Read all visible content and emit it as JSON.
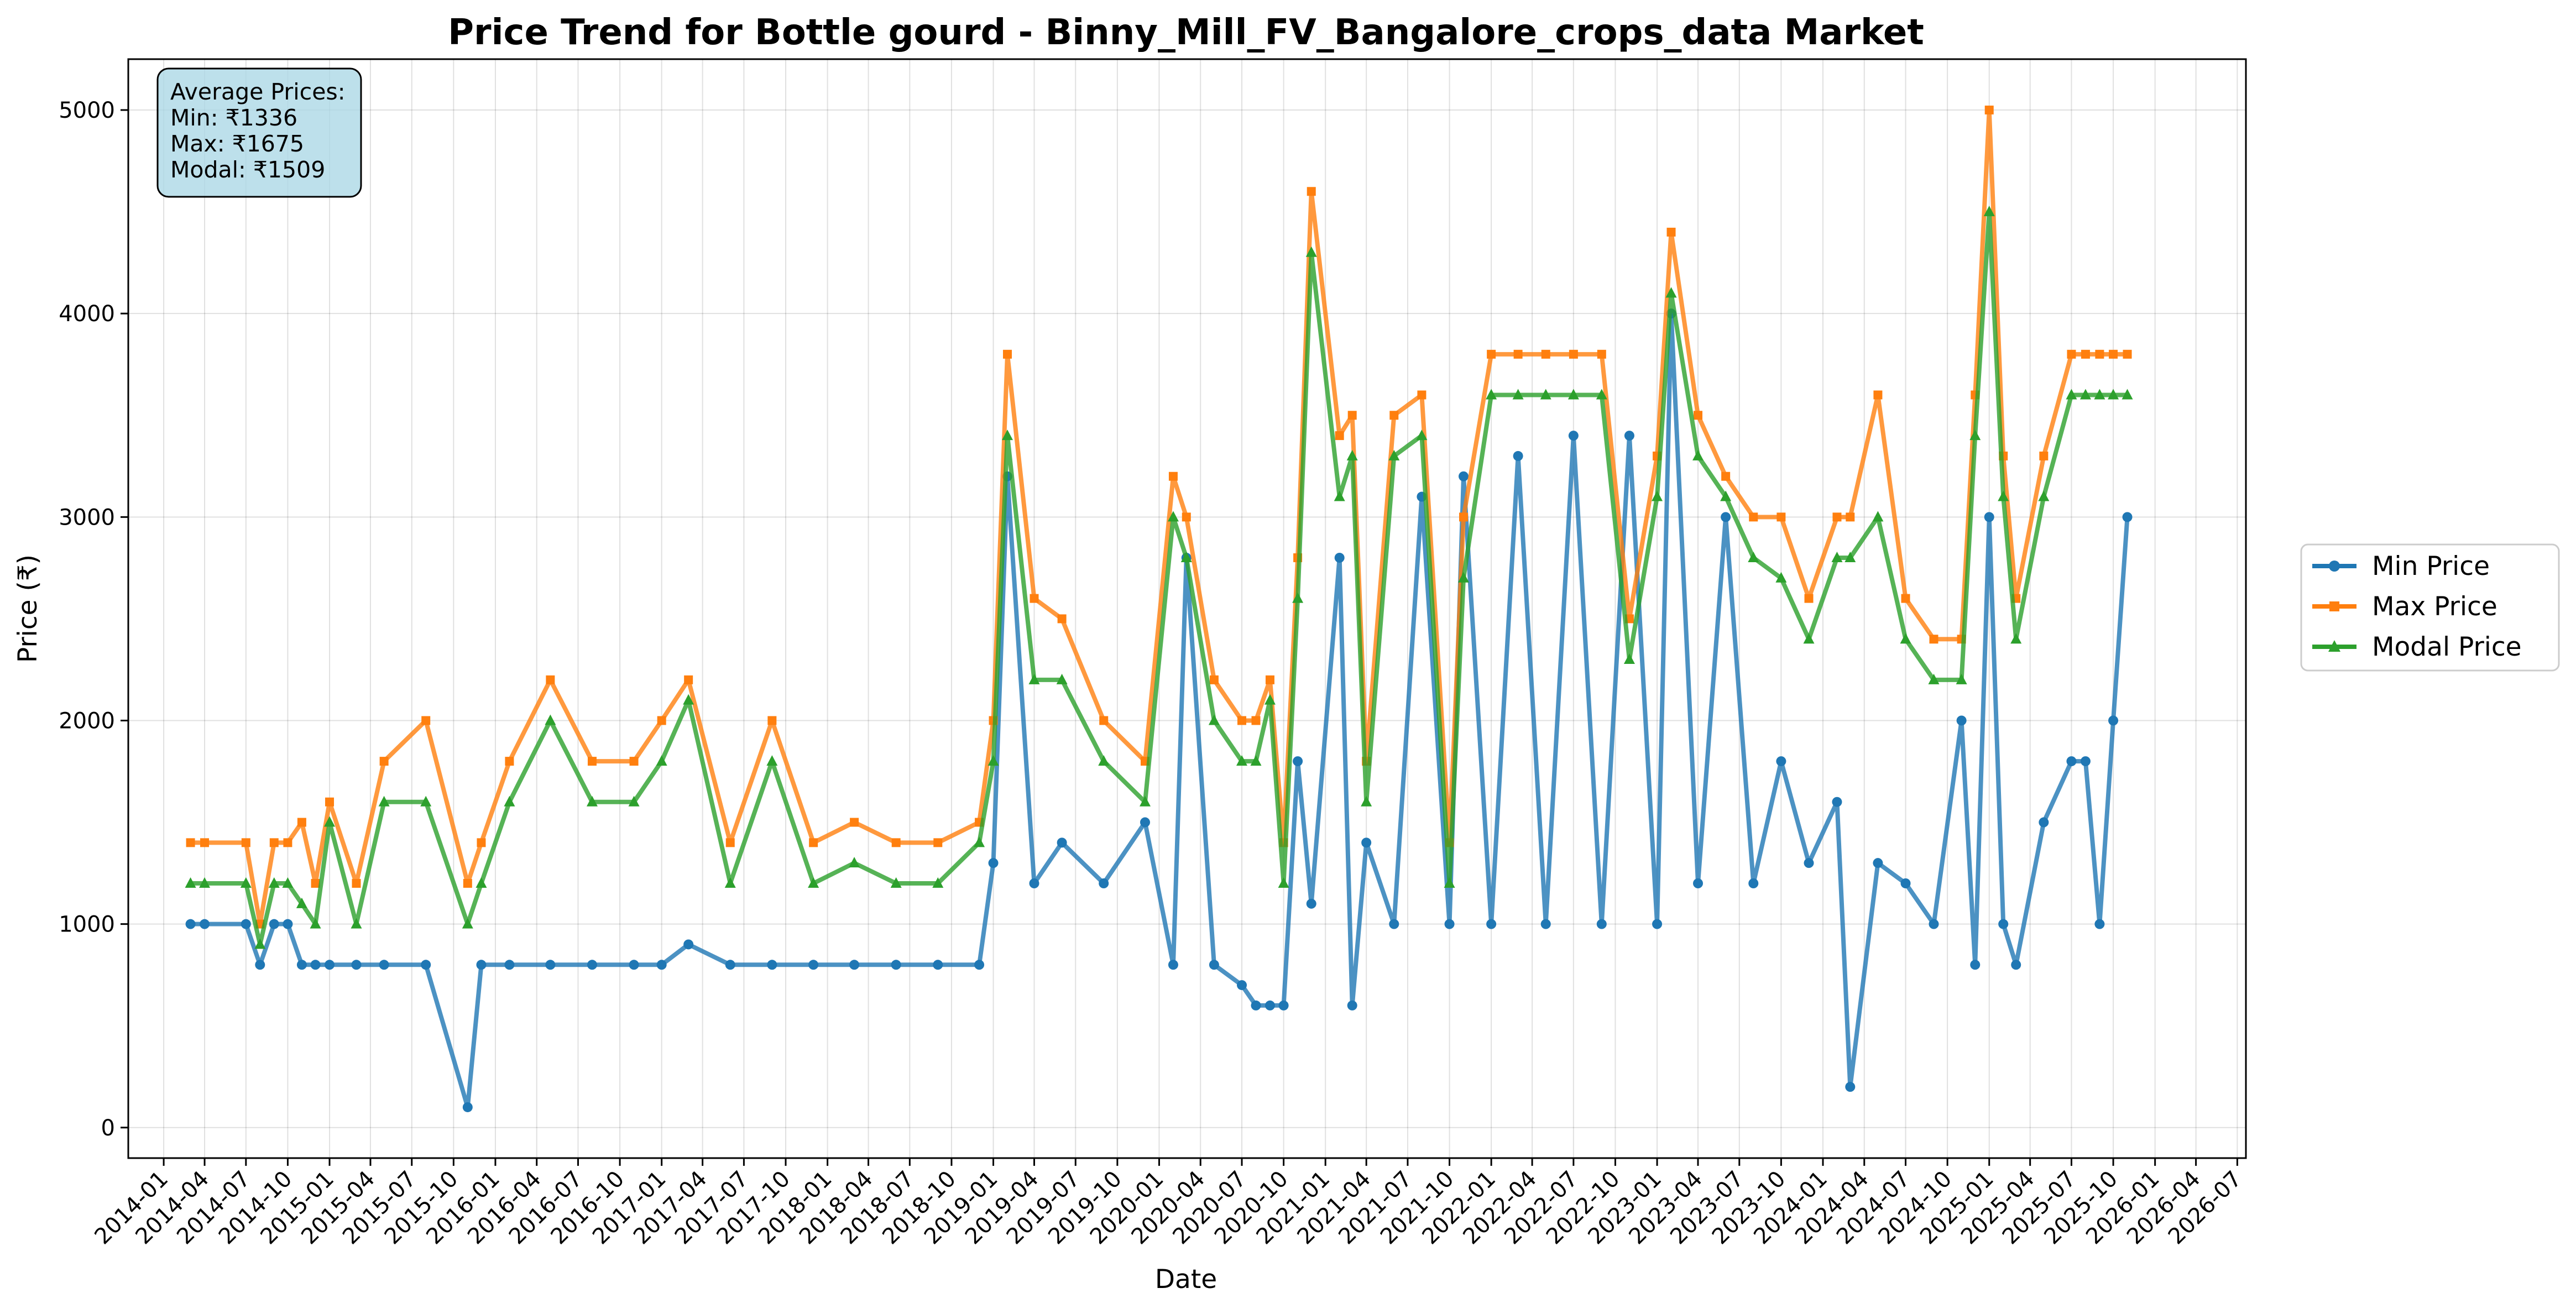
{
  "chart_data": {
    "type": "line",
    "title": "Price Trend for Bottle gourd - Binny_Mill_FV_Bangalore_crops_data Market",
    "xlabel": "Date",
    "ylabel": "Price (₹)",
    "ylim": [
      -150,
      5250
    ],
    "xlim": [
      "2013-10-15",
      "2026-07-20"
    ],
    "grid": true,
    "legend_position": "right-center",
    "y_ticks": [
      0,
      1000,
      2000,
      3000,
      4000,
      5000
    ],
    "x_tick_labels": [
      "2014-01",
      "2014-04",
      "2014-07",
      "2014-10",
      "2015-01",
      "2015-04",
      "2015-07",
      "2015-10",
      "2016-01",
      "2016-04",
      "2016-07",
      "2016-10",
      "2017-01",
      "2017-04",
      "2017-07",
      "2017-10",
      "2018-01",
      "2018-04",
      "2018-07",
      "2018-10",
      "2019-01",
      "2019-04",
      "2019-07",
      "2019-10",
      "2020-01",
      "2020-04",
      "2020-07",
      "2020-10",
      "2021-01",
      "2021-04",
      "2021-07",
      "2021-10",
      "2022-01",
      "2022-04",
      "2022-07",
      "2022-10",
      "2023-01",
      "2023-04",
      "2023-07",
      "2023-10",
      "2024-01",
      "2024-04",
      "2024-07",
      "2024-10",
      "2025-01",
      "2025-04",
      "2025-07",
      "2025-10",
      "2026-01",
      "2026-04",
      "2026-07"
    ],
    "summary_box": {
      "heading": "Average Prices:",
      "min": "Min: ₹1336",
      "max": "Max: ₹1675",
      "modal": "Modal: ₹1509"
    },
    "series": [
      {
        "name": "Min Price",
        "color": "#1f77b4",
        "marker": "circle",
        "x": [
          "2014-03-01",
          "2014-04-01",
          "2014-07-01",
          "2014-08-01",
          "2014-09-01",
          "2014-10-01",
          "2014-11-01",
          "2014-12-01",
          "2015-01-01",
          "2015-03-01",
          "2015-05-01",
          "2015-08-01",
          "2015-11-01",
          "2015-12-01",
          "2016-02-01",
          "2016-05-01",
          "2016-08-01",
          "2016-11-01",
          "2017-01-01",
          "2017-03-01",
          "2017-06-01",
          "2017-09-01",
          "2017-12-01",
          "2018-03-01",
          "2018-06-01",
          "2018-09-01",
          "2018-12-01",
          "2019-01-01",
          "2019-02-01",
          "2019-04-01",
          "2019-06-01",
          "2019-09-01",
          "2019-12-01",
          "2020-02-01",
          "2020-03-01",
          "2020-05-01",
          "2020-07-01",
          "2020-08-01",
          "2020-09-01",
          "2020-10-01",
          "2020-11-01",
          "2020-12-01",
          "2021-02-01",
          "2021-03-01",
          "2021-04-01",
          "2021-06-01",
          "2021-08-01",
          "2021-10-01",
          "2021-11-01",
          "2022-01-01",
          "2022-03-01",
          "2022-05-01",
          "2022-07-01",
          "2022-09-01",
          "2022-11-01",
          "2023-01-01",
          "2023-02-01",
          "2023-04-01",
          "2023-06-01",
          "2023-08-01",
          "2023-10-01",
          "2023-12-01",
          "2024-02-01",
          "2024-03-01",
          "2024-05-01",
          "2024-07-01",
          "2024-09-01",
          "2024-11-01",
          "2024-12-01",
          "2025-01-01",
          "2025-02-01",
          "2025-03-01",
          "2025-05-01",
          "2025-07-01",
          "2025-08-01",
          "2025-09-01",
          "2025-10-01",
          "2025-11-01"
        ],
        "values": [
          1000,
          1000,
          1000,
          800,
          1000,
          1000,
          800,
          800,
          800,
          800,
          800,
          800,
          100,
          800,
          800,
          800,
          800,
          800,
          800,
          900,
          800,
          800,
          800,
          800,
          800,
          800,
          800,
          1300,
          3200,
          1200,
          1400,
          1200,
          1500,
          800,
          2800,
          800,
          700,
          600,
          600,
          600,
          1800,
          1100,
          2800,
          600,
          1400,
          1000,
          3100,
          1000,
          3200,
          1000,
          3300,
          1000,
          3400,
          1000,
          3400,
          1000,
          4000,
          1200,
          3000,
          1200,
          1800,
          1300,
          1600,
          200,
          1300,
          1200,
          1000,
          2000,
          800,
          3000,
          1000,
          800,
          1500,
          1800,
          1800,
          1000,
          2000,
          3000
        ]
      },
      {
        "name": "Max Price",
        "color": "#ff7f0e",
        "marker": "square",
        "x": [
          "2014-03-01",
          "2014-04-01",
          "2014-07-01",
          "2014-08-01",
          "2014-09-01",
          "2014-10-01",
          "2014-11-01",
          "2014-12-01",
          "2015-01-01",
          "2015-03-01",
          "2015-05-01",
          "2015-08-01",
          "2015-11-01",
          "2015-12-01",
          "2016-02-01",
          "2016-05-01",
          "2016-08-01",
          "2016-11-01",
          "2017-01-01",
          "2017-03-01",
          "2017-06-01",
          "2017-09-01",
          "2017-12-01",
          "2018-03-01",
          "2018-06-01",
          "2018-09-01",
          "2018-12-01",
          "2019-01-01",
          "2019-02-01",
          "2019-04-01",
          "2019-06-01",
          "2019-09-01",
          "2019-12-01",
          "2020-02-01",
          "2020-03-01",
          "2020-05-01",
          "2020-07-01",
          "2020-08-01",
          "2020-09-01",
          "2020-10-01",
          "2020-11-01",
          "2020-12-01",
          "2021-02-01",
          "2021-03-01",
          "2021-04-01",
          "2021-06-01",
          "2021-08-01",
          "2021-10-01",
          "2021-11-01",
          "2022-01-01",
          "2022-03-01",
          "2022-05-01",
          "2022-07-01",
          "2022-09-01",
          "2022-11-01",
          "2023-01-01",
          "2023-02-01",
          "2023-04-01",
          "2023-06-01",
          "2023-08-01",
          "2023-10-01",
          "2023-12-01",
          "2024-02-01",
          "2024-03-01",
          "2024-05-01",
          "2024-07-01",
          "2024-09-01",
          "2024-11-01",
          "2024-12-01",
          "2025-01-01",
          "2025-02-01",
          "2025-03-01",
          "2025-05-01",
          "2025-07-01",
          "2025-08-01",
          "2025-09-01",
          "2025-10-01",
          "2025-11-01"
        ],
        "values": [
          1400,
          1400,
          1400,
          1000,
          1400,
          1400,
          1500,
          1200,
          1600,
          1200,
          1800,
          2000,
          1200,
          1400,
          1800,
          2200,
          1800,
          1800,
          2000,
          2200,
          1400,
          2000,
          1400,
          1500,
          1400,
          1400,
          1500,
          2000,
          3800,
          2600,
          2500,
          2000,
          1800,
          3200,
          3000,
          2200,
          2000,
          2000,
          2200,
          1400,
          2800,
          4600,
          3400,
          3500,
          1800,
          3500,
          3600,
          1400,
          3000,
          3800,
          3800,
          3800,
          3800,
          3800,
          2500,
          3300,
          4400,
          3500,
          3200,
          3000,
          3000,
          2600,
          3000,
          3000,
          3600,
          2600,
          2400,
          2400,
          3600,
          5000,
          3300,
          2600,
          3300,
          3800,
          3800,
          3800,
          3800,
          3800
        ]
      },
      {
        "name": "Modal Price",
        "color": "#2ca02c",
        "marker": "triangle",
        "x": [
          "2014-03-01",
          "2014-04-01",
          "2014-07-01",
          "2014-08-01",
          "2014-09-01",
          "2014-10-01",
          "2014-11-01",
          "2014-12-01",
          "2015-01-01",
          "2015-03-01",
          "2015-05-01",
          "2015-08-01",
          "2015-11-01",
          "2015-12-01",
          "2016-02-01",
          "2016-05-01",
          "2016-08-01",
          "2016-11-01",
          "2017-01-01",
          "2017-03-01",
          "2017-06-01",
          "2017-09-01",
          "2017-12-01",
          "2018-03-01",
          "2018-06-01",
          "2018-09-01",
          "2018-12-01",
          "2019-01-01",
          "2019-02-01",
          "2019-04-01",
          "2019-06-01",
          "2019-09-01",
          "2019-12-01",
          "2020-02-01",
          "2020-03-01",
          "2020-05-01",
          "2020-07-01",
          "2020-08-01",
          "2020-09-01",
          "2020-10-01",
          "2020-11-01",
          "2020-12-01",
          "2021-02-01",
          "2021-03-01",
          "2021-04-01",
          "2021-06-01",
          "2021-08-01",
          "2021-10-01",
          "2021-11-01",
          "2022-01-01",
          "2022-03-01",
          "2022-05-01",
          "2022-07-01",
          "2022-09-01",
          "2022-11-01",
          "2023-01-01",
          "2023-02-01",
          "2023-04-01",
          "2023-06-01",
          "2023-08-01",
          "2023-10-01",
          "2023-12-01",
          "2024-02-01",
          "2024-03-01",
          "2024-05-01",
          "2024-07-01",
          "2024-09-01",
          "2024-11-01",
          "2024-12-01",
          "2025-01-01",
          "2025-02-01",
          "2025-03-01",
          "2025-05-01",
          "2025-07-01",
          "2025-08-01",
          "2025-09-01",
          "2025-10-01",
          "2025-11-01"
        ],
        "values": [
          1200,
          1200,
          1200,
          900,
          1200,
          1200,
          1100,
          1000,
          1500,
          1000,
          1600,
          1600,
          1000,
          1200,
          1600,
          2000,
          1600,
          1600,
          1800,
          2100,
          1200,
          1800,
          1200,
          1300,
          1200,
          1200,
          1400,
          1800,
          3400,
          2200,
          2200,
          1800,
          1600,
          3000,
          2800,
          2000,
          1800,
          1800,
          2100,
          1200,
          2600,
          4300,
          3100,
          3300,
          1600,
          3300,
          3400,
          1200,
          2700,
          3600,
          3600,
          3600,
          3600,
          3600,
          2300,
          3100,
          4100,
          3300,
          3100,
          2800,
          2700,
          2400,
          2800,
          2800,
          3000,
          2400,
          2200,
          2200,
          3400,
          4500,
          3100,
          2400,
          3100,
          3600,
          3600,
          3600,
          3600,
          3600
        ]
      }
    ]
  }
}
